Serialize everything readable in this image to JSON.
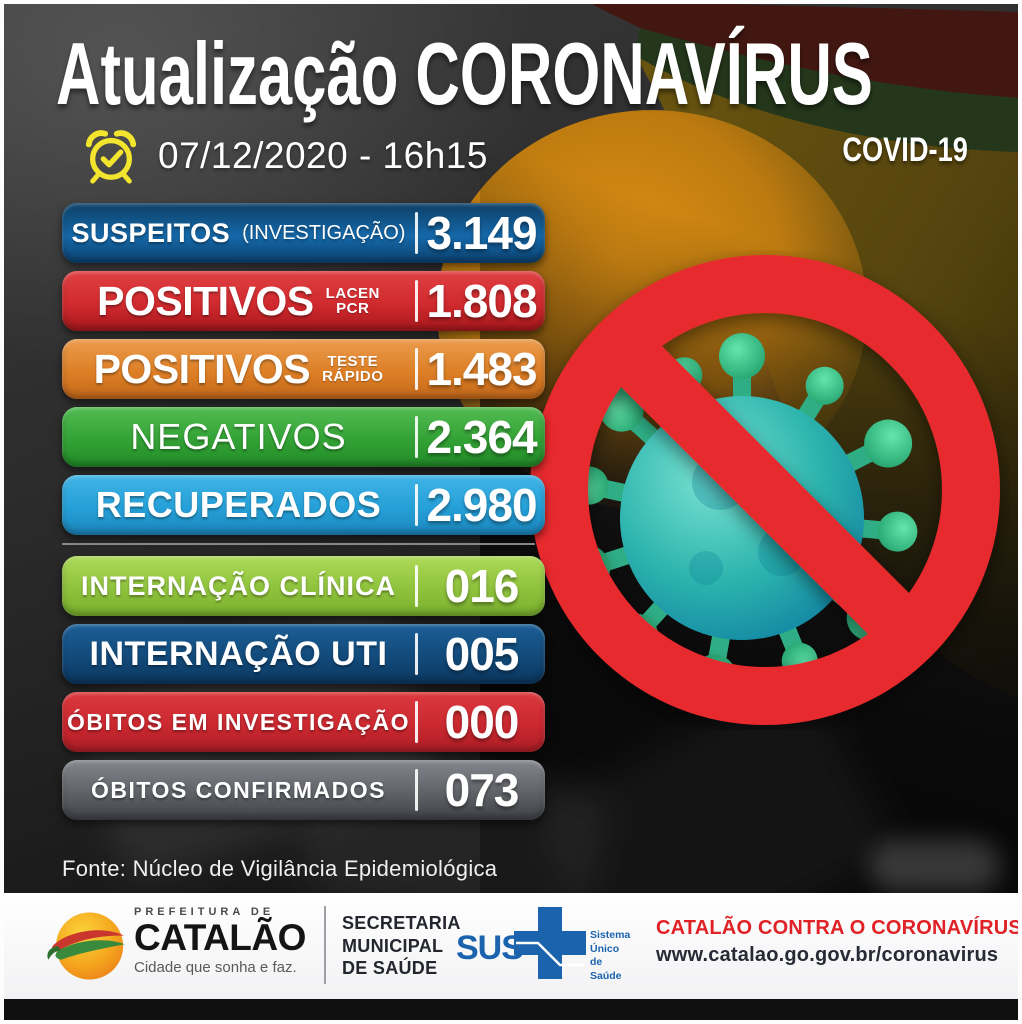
{
  "header": {
    "title": "Atualização CORONAVÍRUS",
    "subtitle": "COVID-19",
    "datetime": "07/12/2020 - 16h15"
  },
  "stats": [
    {
      "label": "SUSPEITOS",
      "sublabel": "(INVESTIGAÇÃO)",
      "value": "3.149",
      "variant": "v-suspeitos",
      "gradient": [
        "#0d3f66",
        "#1568a8",
        "#0c4271"
      ]
    },
    {
      "label": "POSITIVOS",
      "sublabel_lines": [
        "LACEN",
        "PCR"
      ],
      "value": "1.808",
      "variant": "v-pcr",
      "gradient": [
        "#e04043",
        "#d02a2e",
        "#a8181c"
      ]
    },
    {
      "label": "POSITIVOS",
      "sublabel_lines": [
        "TESTE",
        "RÁPIDO"
      ],
      "value": "1.483",
      "variant": "v-rapido",
      "gradient": [
        "#eb9c4d",
        "#dd7f26",
        "#c4691a"
      ]
    },
    {
      "label": "NEGATIVOS",
      "value": "2.364",
      "variant": "v-negativos",
      "gradient": [
        "#52bb52",
        "#33a235",
        "#228b28"
      ]
    },
    {
      "label": "RECUPERADOS",
      "value": "2.980",
      "variant": "v-recuperados",
      "gradient": [
        "#41b4e6",
        "#25a0d8",
        "#1b86bd"
      ],
      "divider_after": true
    },
    {
      "label": "INTERNAÇÃO CLÍNICA",
      "value": "016",
      "variant": "v-clinica",
      "gradient": [
        "#adda58",
        "#8fc23c",
        "#7ab02f"
      ]
    },
    {
      "label": "INTERNAÇÃO UTI",
      "value": "005",
      "variant": "v-uti",
      "gradient": [
        "#1c5f97",
        "#124a7a",
        "#0c3860"
      ]
    },
    {
      "label": "ÓBITOS EM INVESTIGAÇÃO",
      "value": "000",
      "variant": "v-obitos-inv",
      "gradient": [
        "#db3a3f",
        "#cb2830",
        "#b01e25"
      ]
    },
    {
      "label": "ÓBITOS CONFIRMADOS",
      "value": "073",
      "variant": "v-obitos-conf",
      "gradient": [
        "#83868c",
        "#5f6267",
        "#3f4247"
      ]
    }
  ],
  "source": "Fonte: Núcleo de Vigilância Epidemiológica",
  "footer": {
    "prefeitura_small": "PREFEITURA DE",
    "prefeitura_name": "CATALÃO",
    "prefeitura_tagline": "Cidade que sonha e faz.",
    "secretaria_lines": [
      "SECRETARIA",
      "MUNICIPAL",
      "DE SAÚDE"
    ],
    "sus_label": "SUS",
    "sus_tagline_lines": [
      "Sistema",
      "Único",
      "de Saúde"
    ],
    "campaign": "CATALÃO CONTRA O CORONAVÍRUS",
    "website": "www.catalao.go.gov.br/coronavirus"
  },
  "icons": {
    "alarm-clock-icon": "yellow alarm clock with checkmark",
    "no-virus-icon": "red prohibition ring with slash over teal coronavirus",
    "catalao-ball-icon": "orange sphere with red and green swoosh bands",
    "sus-cross-icon": "blue SUS health cross"
  },
  "colors": {
    "ring_red": "#e7292e",
    "virus_teal": "#2cb4ad",
    "virus_green": "#3ecf8e",
    "campaign_red": "#e02227",
    "sus_blue": "#1b63ad",
    "clock_yellow": "#f3e52e",
    "background_dark": "#1c1c1c",
    "footer_white": "#ffffff"
  }
}
